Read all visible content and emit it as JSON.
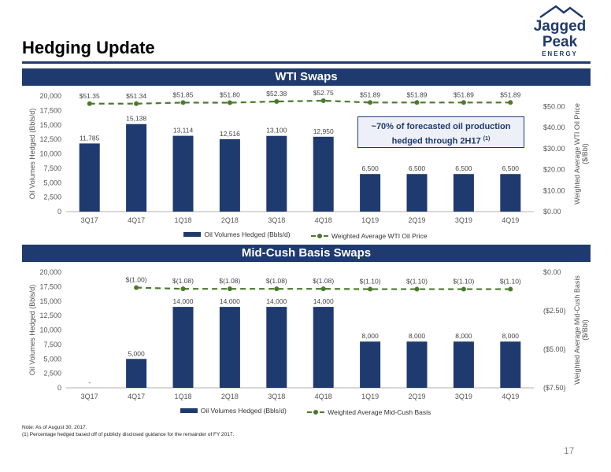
{
  "header": {
    "title": "Hedging Update"
  },
  "logo": {
    "line1": "Jagged",
    "line2": "Peak",
    "line3": "ENERGY"
  },
  "panels": {
    "wti": "WTI Swaps",
    "mc": "Mid-Cush Basis Swaps"
  },
  "callout": {
    "text": "~70% of forecasted oil production hedged through 2H17",
    "sup": "(1)"
  },
  "chart_data": [
    {
      "type": "bar",
      "title": "WTI Swaps",
      "categories": [
        "3Q17",
        "4Q17",
        "1Q18",
        "2Q18",
        "3Q18",
        "4Q18",
        "1Q19",
        "2Q19",
        "3Q19",
        "4Q19"
      ],
      "series": [
        {
          "name": "Oil Volumes Hedged (Bbls/d)",
          "type": "bar",
          "values": [
            11785,
            15138,
            13114,
            12516,
            13100,
            12950,
            6500,
            6500,
            6500,
            6500
          ],
          "labels": [
            "11,785",
            "15,138",
            "13,114",
            "12,516",
            "13,100",
            "12,950",
            "6,500",
            "6,500",
            "6,500",
            "6,500"
          ]
        },
        {
          "name": "Weighted Average WTI Oil Price",
          "type": "line",
          "values": [
            51.35,
            51.34,
            51.85,
            51.8,
            52.38,
            52.75,
            51.89,
            51.89,
            51.89,
            51.89
          ],
          "labels": [
            "$51.35",
            "$51.34",
            "$51.85",
            "$51.80",
            "$52.38",
            "$52.75",
            "$51.89",
            "$51.89",
            "$51.89",
            "$51.89"
          ]
        }
      ],
      "ylabel": "Oil Volumes Hedged (Bbls/d)",
      "ylim": [
        0,
        20000
      ],
      "yticks": [
        "0",
        "2,500",
        "5,000",
        "7,500",
        "10,000",
        "12,500",
        "15,000",
        "17,500",
        "20,000"
      ],
      "y2label": "Weighted Average WTI Oil Price ($/Bbl)",
      "y2lim": [
        0,
        55
      ],
      "y2ticks": [
        0,
        10,
        20,
        30,
        40,
        50
      ],
      "y2ticklabels": [
        "$0.00",
        "$10.00",
        "$20.00",
        "$30.00",
        "$40.00",
        "$50.00"
      ],
      "legend": "bottom"
    },
    {
      "type": "bar",
      "title": "Mid-Cush Basis Swaps",
      "categories": [
        "3Q17",
        "4Q17",
        "1Q18",
        "2Q18",
        "3Q18",
        "4Q18",
        "1Q19",
        "2Q19",
        "3Q19",
        "4Q19"
      ],
      "series": [
        {
          "name": "Oil Volumes Hedged (Bbls/d)",
          "type": "bar",
          "values": [
            0,
            5000,
            14000,
            14000,
            14000,
            14000,
            8000,
            8000,
            8000,
            8000
          ],
          "labels": [
            "-",
            "5,000",
            "14,000",
            "14,000",
            "14,000",
            "14,000",
            "8,000",
            "8,000",
            "8,000",
            "8,000"
          ]
        },
        {
          "name": "Weighted Average Mid-Cush Basis",
          "type": "line",
          "values": [
            null,
            -1.0,
            -1.08,
            -1.08,
            -1.08,
            -1.08,
            -1.1,
            -1.1,
            -1.1,
            -1.1
          ],
          "labels": [
            "",
            "$(1.00)",
            "$(1.08)",
            "$(1.08)",
            "$(1.08)",
            "$(1.08)",
            "$(1.10)",
            "$(1.10)",
            "$(1.10)",
            "$(1.10)"
          ]
        }
      ],
      "ylabel": "Oil Volumes Hedged (Bbls/d)",
      "ylim": [
        0,
        20000
      ],
      "yticks": [
        "0",
        "2,500",
        "5,000",
        "7,500",
        "10,000",
        "12,500",
        "15,000",
        "17,500",
        "20,000"
      ],
      "y2label": "Weighted Average Mid-Cush Basis ($/Bbl)",
      "y2lim": [
        -7.5,
        0
      ],
      "y2ticks": [
        0,
        -2.5,
        -5,
        -7.5
      ],
      "y2ticklabels": [
        "$0.00",
        "($2.50)",
        "($5.00)",
        "($7.50)"
      ],
      "legend": "bottom"
    }
  ],
  "notes": {
    "line1": "Note: As of August 30, 2017.",
    "line2": "(1)     Percentage hedged based off of publicly disclosed guidance for the remainder of FY 2017."
  },
  "page_number": "17",
  "colors": {
    "bar": "#1f3a6e",
    "line": "#4a7a2c",
    "header": "#1f3a6e"
  }
}
